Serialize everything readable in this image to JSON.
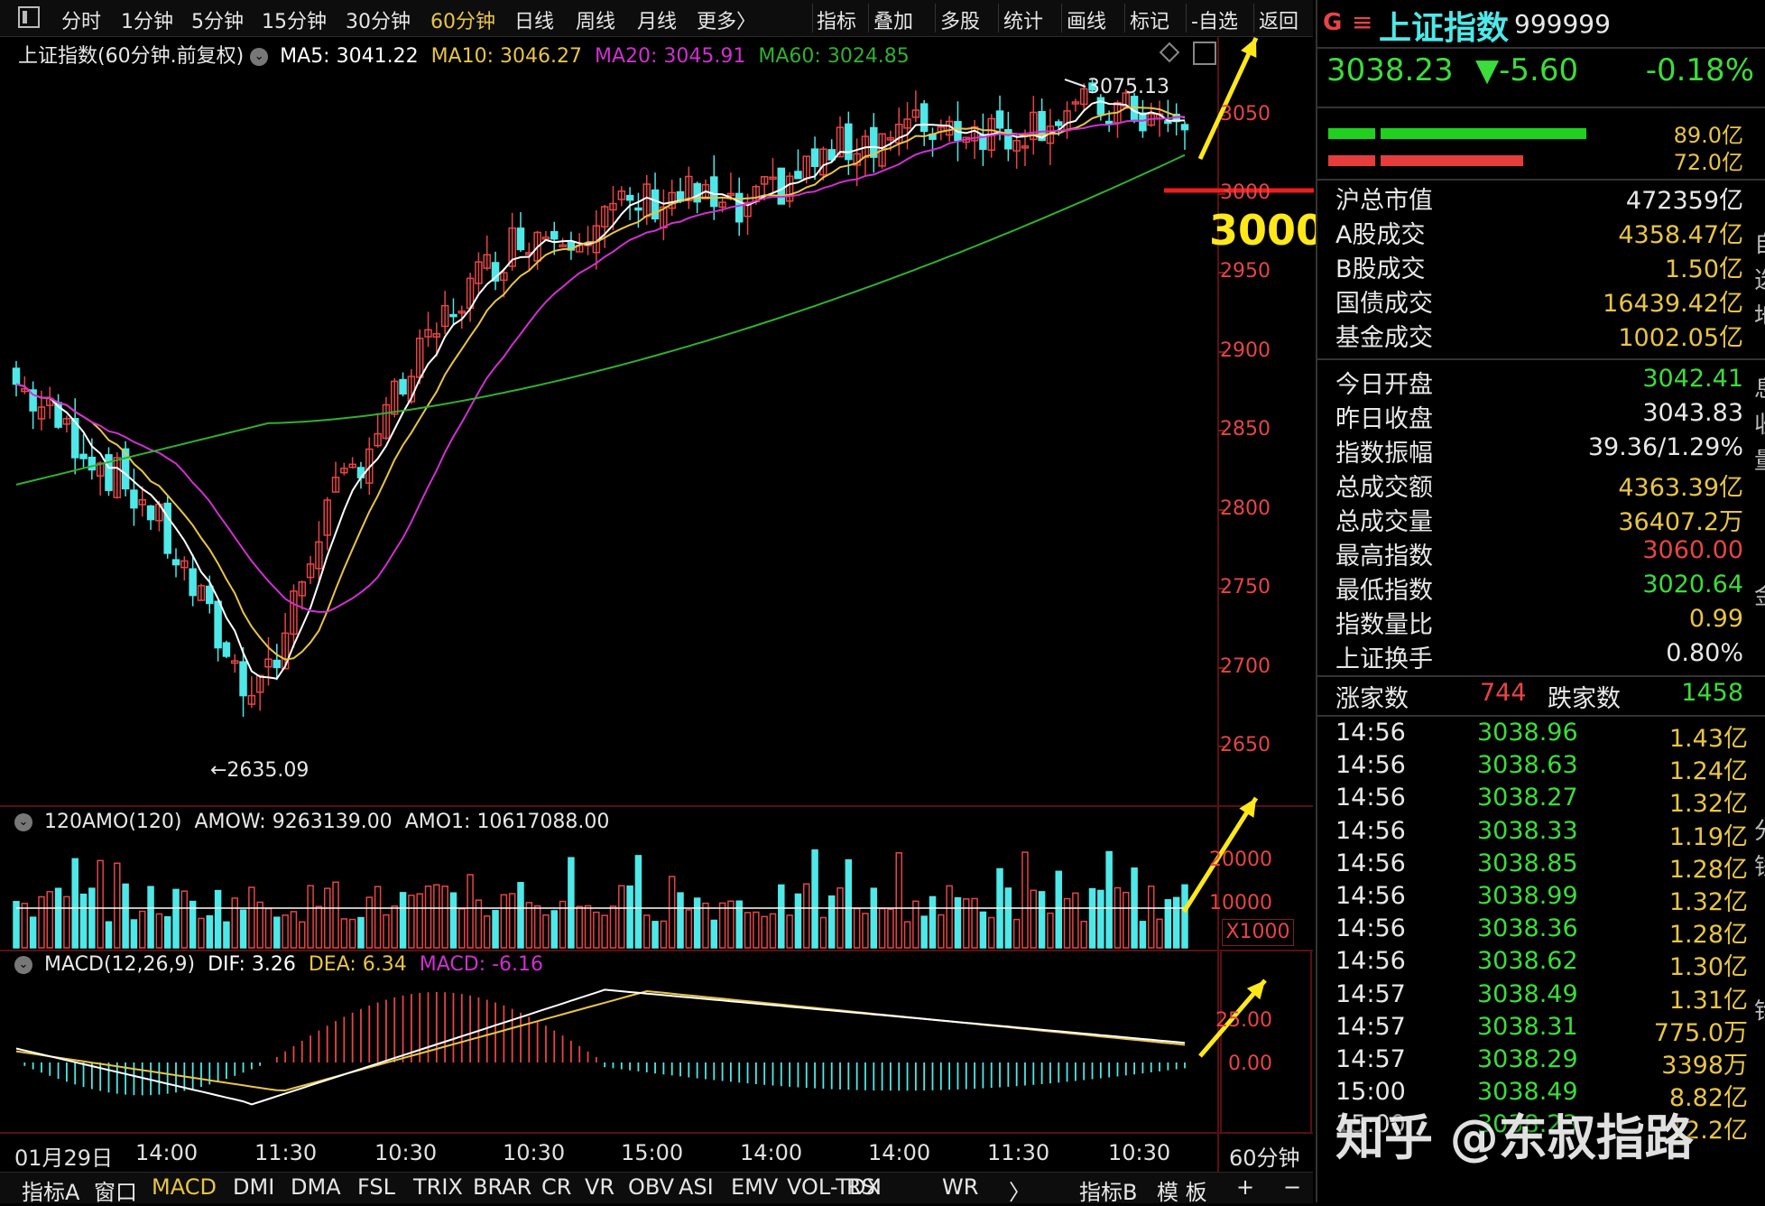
{
  "toolbar": {
    "periods": [
      "分时",
      "1分钟",
      "5分钟",
      "15分钟",
      "30分钟",
      "60分钟",
      "日线",
      "周线",
      "月线",
      "更多〉"
    ],
    "active_period": "60分钟",
    "tools": [
      "指标",
      "叠加",
      "多股",
      "统计",
      "画线",
      "标记",
      "-自选",
      "返回"
    ]
  },
  "main_chart": {
    "title": "上证指数(60分钟.前复权)",
    "ma5": "MA5: 3041.22",
    "ma10": "MA10: 3046.27",
    "ma20": "MA20: 3045.91",
    "ma60": "MA60: 3024.85",
    "high_mark": "3075.13",
    "low_mark": "←2635.09",
    "annotation_level": "3000",
    "y_ticks": [
      "3050",
      "3000",
      "2950",
      "2900",
      "2850",
      "2800",
      "2750",
      "2700",
      "2650"
    ],
    "colors": {
      "up": "#e64545",
      "down": "#4ee8e8",
      "ma5": "#ffffff",
      "ma10": "#e8c545",
      "ma20": "#d030d0",
      "ma60": "#30b030",
      "annotation": "#ffe81a"
    }
  },
  "volume_panel": {
    "title": "120AMO(120)",
    "amow": "AMOW: 9263139.00",
    "amo1": "AMO1: 10617088.00",
    "y_ticks": [
      "20000",
      "10000"
    ],
    "unit": "X1000"
  },
  "macd_panel": {
    "title": "MACD(12,26,9)",
    "dif": "DIF: 3.26",
    "dea": "DEA: 6.34",
    "macd": "MACD: -6.16",
    "y_ticks": [
      "25.00",
      "0.00"
    ]
  },
  "x_axis": {
    "labels": [
      "01月29日",
      "14:00",
      "11:30",
      "10:30",
      "10:30",
      "15:00",
      "14:00",
      "14:00",
      "11:30",
      "10:30"
    ],
    "period": "60分钟"
  },
  "bottom_tabs": [
    "指标A",
    "窗口",
    "MACD",
    "DMI",
    "DMA",
    "FSL",
    "TRIX",
    "BRAR",
    "CR",
    "VR",
    "OBV",
    "ASI",
    "EMV",
    "VOL-TDX",
    "RSI",
    "WR",
    "〉"
  ],
  "bottom_tabs_active": "MACD",
  "bottom_right": [
    "指标B",
    "模 板",
    "+",
    "−"
  ],
  "quote": {
    "badge": "G",
    "menu_icon": "≡",
    "name": "上证指数",
    "code": "999999",
    "price": "3038.23",
    "change": "▼-5.60",
    "pct": "-0.18%",
    "bar_green_val": "89.0亿",
    "bar_red_val": "72.0亿"
  },
  "stats": [
    {
      "label": "沪总市值",
      "value": "472359亿",
      "color": "#e8e8e8"
    },
    {
      "label": "A股成交",
      "value": "4358.47亿",
      "color": "#e8c545"
    },
    {
      "label": "B股成交",
      "value": "1.50亿",
      "color": "#e8c545"
    },
    {
      "label": "国债成交",
      "value": "16439.42亿",
      "color": "#e8c545"
    },
    {
      "label": "基金成交",
      "value": "1002.05亿",
      "color": "#e8c545"
    },
    {
      "label": "今日开盘",
      "value": "3042.41",
      "color": "#3cdc3c"
    },
    {
      "label": "昨日收盘",
      "value": "3043.83",
      "color": "#e8e8e8"
    },
    {
      "label": "指数振幅",
      "value": "39.36/1.29%",
      "color": "#e8e8e8"
    },
    {
      "label": "总成交额",
      "value": "4363.39亿",
      "color": "#e8c545"
    },
    {
      "label": "总成交量",
      "value": "36407.2万",
      "color": "#e8c545"
    },
    {
      "label": "最高指数",
      "value": "3060.00",
      "color": "#e64545"
    },
    {
      "label": "最低指数",
      "value": "3020.64",
      "color": "#3cdc3c"
    },
    {
      "label": "指数量比",
      "value": "0.99",
      "color": "#e8c545"
    },
    {
      "label": "上证换手",
      "value": "0.80%",
      "color": "#e8e8e8"
    }
  ],
  "breadth": {
    "up_label": "涨家数",
    "up_value": "744",
    "down_label": "跌家数",
    "down_value": "1458"
  },
  "ticks": [
    {
      "time": "14:56",
      "price": "3038.96",
      "vol": "1.43亿"
    },
    {
      "time": "14:56",
      "price": "3038.63",
      "vol": "1.24亿"
    },
    {
      "time": "14:56",
      "price": "3038.27",
      "vol": "1.32亿"
    },
    {
      "time": "14:56",
      "price": "3038.33",
      "vol": "1.19亿"
    },
    {
      "time": "14:56",
      "price": "3038.85",
      "vol": "1.28亿"
    },
    {
      "time": "14:56",
      "price": "3038.99",
      "vol": "1.32亿"
    },
    {
      "time": "14:56",
      "price": "3038.36",
      "vol": "1.28亿"
    },
    {
      "time": "14:56",
      "price": "3038.62",
      "vol": "1.30亿"
    },
    {
      "time": "14:57",
      "price": "3038.49",
      "vol": "1.31亿"
    },
    {
      "time": "14:57",
      "price": "3038.31",
      "vol": "775.0万"
    },
    {
      "time": "14:57",
      "price": "3038.29",
      "vol": "3398万"
    },
    {
      "time": "15:00",
      "price": "3038.49",
      "vol": "8.82亿"
    },
    {
      "time": "15:00",
      "price": "3038.23",
      "vol": "12.2亿"
    }
  ],
  "watermark": "知乎 @东叔指路",
  "edge_chars": [
    "自",
    "选",
    "地",
    "息",
    "收",
    "量",
    "金",
    "分",
    "钱",
    "钩"
  ]
}
